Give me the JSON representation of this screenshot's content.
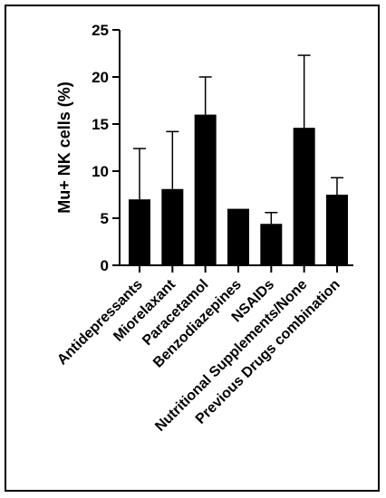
{
  "chart_data": {
    "type": "bar",
    "title": "",
    "xlabel": "",
    "ylabel": "Mu+ NK cells (%)",
    "ylim": [
      0,
      25
    ],
    "yticks": [
      0,
      5,
      10,
      15,
      20,
      25
    ],
    "grid": false,
    "error_bars": "upper only",
    "categories": [
      "Antidepressants",
      "Miorelaxant",
      "Paracetamol",
      "Benzodiazepines",
      "NSAIDs",
      "Nutritional Supplements/None",
      "Previous Drugs combination"
    ],
    "values": [
      7.0,
      8.1,
      16.0,
      6.0,
      4.4,
      14.6,
      7.5
    ],
    "error_upper": [
      12.4,
      14.2,
      20.0,
      6.0,
      5.6,
      22.3,
      9.3
    ],
    "colors": {
      "bar": "#000000",
      "axis": "#000000",
      "border": "#000000"
    }
  }
}
